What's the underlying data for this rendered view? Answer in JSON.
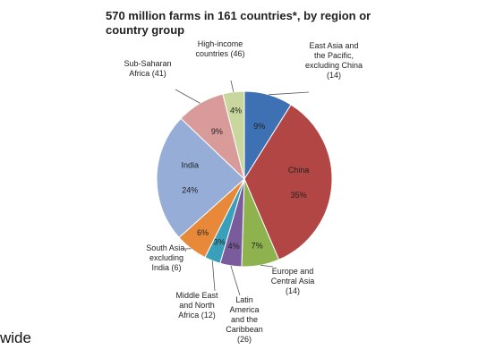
{
  "chart_data": {
    "type": "pie",
    "title": "570 million farms in 161 countries*, by region or country group",
    "categories": [
      "East Asia and the Pacific, excluding China (14)",
      "China",
      "Europe and Central Asia (14)",
      "Latin America and the Caribbean (26)",
      "Middle East and North Africa (12)",
      "South Asia, excluding India (6)",
      "India",
      "Sub-Saharan Africa (41)",
      "High-income countries (46)"
    ],
    "values": [
      9,
      35,
      7,
      4,
      3,
      6,
      24,
      9,
      4
    ],
    "value_labels": [
      "9%",
      "35%",
      "7%",
      "4%",
      "3%",
      "6%",
      "24%",
      "9%",
      "4%"
    ],
    "colors": [
      "#3d71b3",
      "#b24644",
      "#8eb24e",
      "#7a5b9c",
      "#3aa0ba",
      "#e8893a",
      "#96add8",
      "#d89b9a",
      "#c7d79d"
    ]
  },
  "footer_text": "wide"
}
